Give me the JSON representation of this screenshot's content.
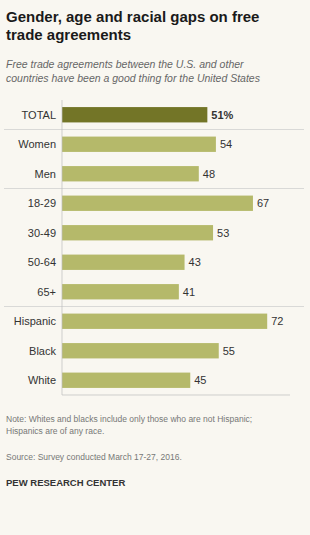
{
  "chart_data": {
    "type": "bar",
    "orientation": "horizontal",
    "title": "Gender, age and racial gaps on free\ntrade agreements",
    "subtitle": "Free trade agreements between the U.S. and other\ncountries have been a good thing for the United States",
    "categories": [
      "TOTAL",
      "Women",
      "Men",
      "18-29",
      "30-49",
      "50-64",
      "65+",
      "Hispanic",
      "Black",
      "White"
    ],
    "values": [
      51,
      54,
      48,
      67,
      53,
      43,
      41,
      72,
      55,
      45
    ],
    "value_labels": [
      "51%",
      "54",
      "48",
      "67",
      "53",
      "43",
      "41",
      "72",
      "55",
      "45"
    ],
    "data_labels": true,
    "colors": [
      "#737527",
      "#b5b96a",
      "#b5b96a",
      "#b5b96a",
      "#b5b96a",
      "#b5b96a",
      "#b5b96a",
      "#b5b96a",
      "#b5b96a",
      "#b5b96a"
    ],
    "xlim": [
      0,
      80
    ],
    "tick_labels": "y",
    "grid": false,
    "annotations": [
      "Note: Whites and blacks include only those who are not Hispanic;\nHispanics are of any race.",
      "Source: Survey conducted March 17-27, 2016.",
      "PEW RESEARCH CENTER"
    ]
  }
}
